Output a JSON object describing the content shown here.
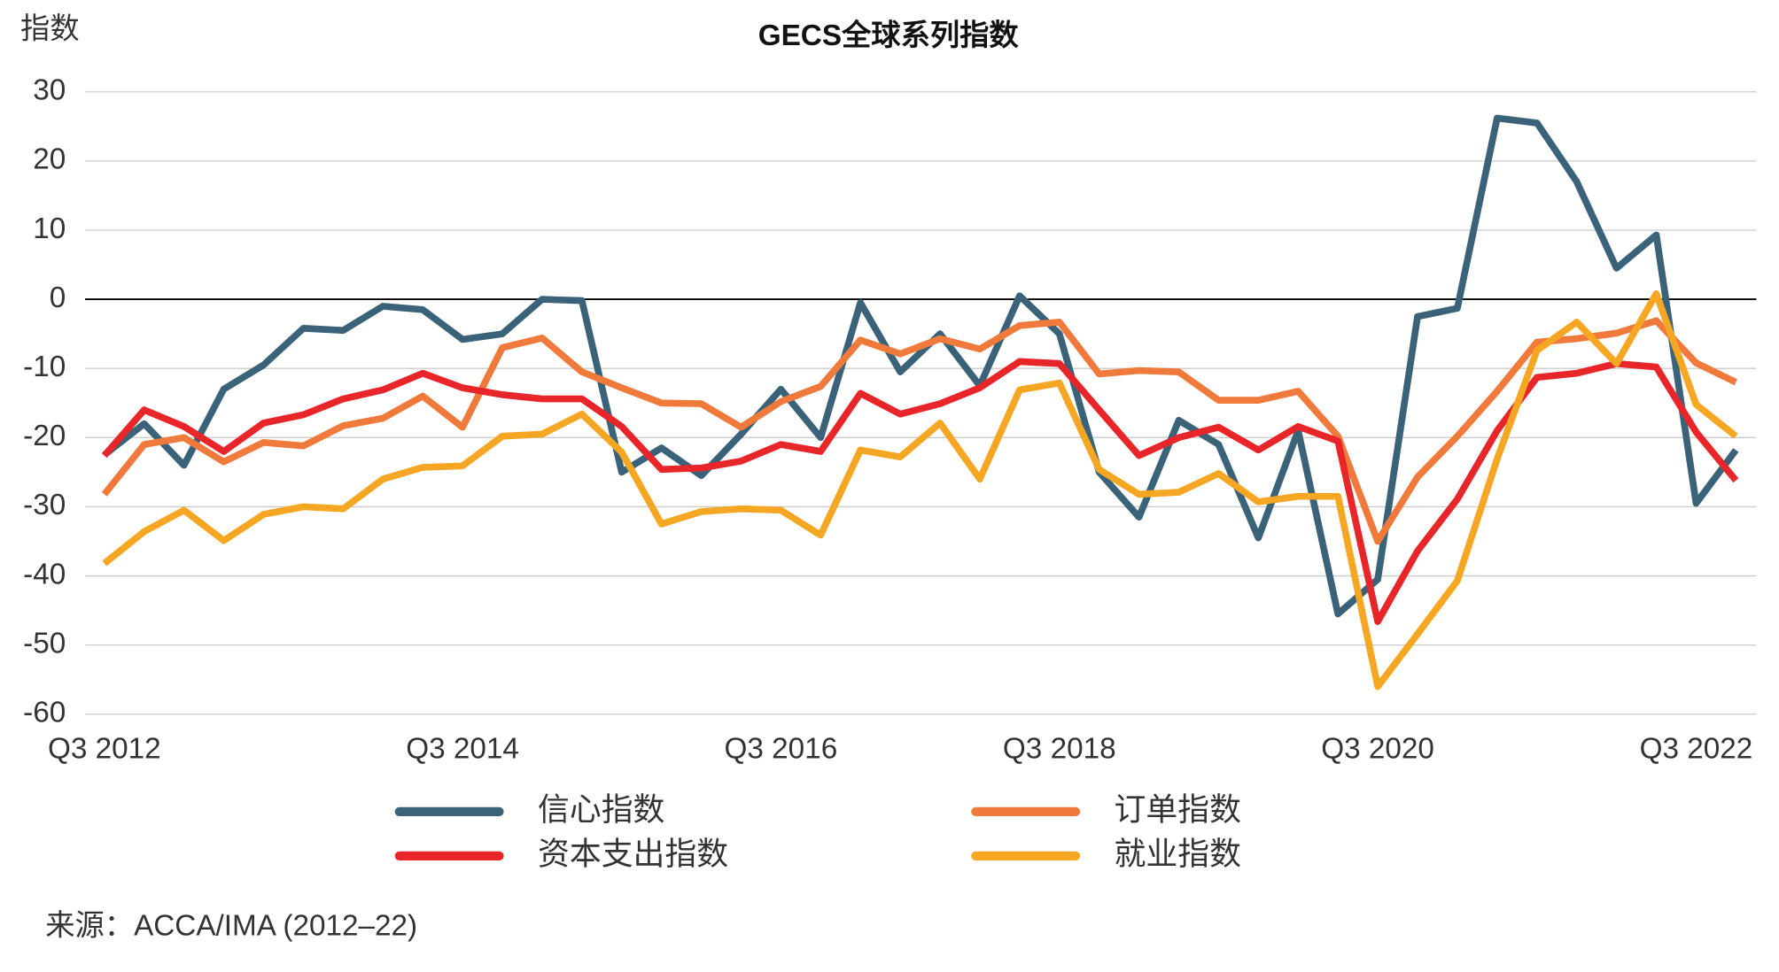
{
  "chart_data": {
    "type": "line",
    "title": "GECS全球系列指数",
    "y_label": "指数",
    "source": "来源：ACCA/IMA (2012–22)",
    "categories": [
      "Q3 2012",
      null,
      null,
      null,
      null,
      null,
      null,
      null,
      null,
      "Q3 2014",
      null,
      null,
      null,
      null,
      null,
      null,
      null,
      "Q3 2016",
      null,
      null,
      null,
      null,
      null,
      null,
      "Q3 2018",
      null,
      null,
      null,
      null,
      null,
      null,
      null,
      "Q3 2020",
      null,
      null,
      null,
      null,
      null,
      null,
      null,
      "Q3 2022",
      null
    ],
    "ylim": [
      -60,
      30
    ],
    "yticks": [
      30,
      20,
      10,
      0,
      -10,
      -20,
      -30,
      -40,
      -50,
      -60
    ],
    "grid": true,
    "series": [
      {
        "name": "信心指数",
        "color": "#3a6379",
        "values": [
          -22.5,
          -18,
          -24,
          -13,
          -9.5,
          -4.2,
          -4.5,
          -1,
          -1.5,
          -5.8,
          -5,
          0,
          -0.2,
          -25,
          -21.5,
          -25.5,
          -19.5,
          -13,
          -20,
          -0.5,
          -10.5,
          -5,
          -12.5,
          0.5,
          -5,
          -25,
          -31.5,
          -17.5,
          -21,
          -34.5,
          -19,
          -45.5,
          -40.5,
          -2.5,
          -1.3,
          26.2,
          25.5,
          17,
          4.5,
          9.3,
          -29.5,
          -21.8
        ]
      },
      {
        "name": "订单指数",
        "color": "#ef7a3b",
        "values": [
          -28.2,
          -21,
          -20,
          -23.5,
          -20.7,
          -21.2,
          -18.3,
          -17.2,
          -14,
          -18.5,
          -7,
          -5.6,
          -10.5,
          -12.8,
          -15,
          -15.1,
          -18.5,
          -14.8,
          -12.6,
          -5.9,
          -7.9,
          -5.7,
          -7.2,
          -3.8,
          -3.3,
          -10.8,
          -10.3,
          -10.5,
          -14.6,
          -14.6,
          -13.3,
          -19.8,
          -35,
          -25.7,
          -19.8,
          -13.3,
          -6.2,
          -5.7,
          -4.9,
          -3.1,
          -9.2,
          -12
        ]
      },
      {
        "name": "资本支出指数",
        "color": "#e8262a",
        "values": [
          -22.6,
          -16,
          -18.4,
          -22,
          -17.9,
          -16.7,
          -14.4,
          -13.1,
          -10.7,
          -12.8,
          -13.8,
          -14.4,
          -14.4,
          -18.4,
          -24.6,
          -24.4,
          -23.4,
          -21,
          -22,
          -13.6,
          -16.6,
          -15.1,
          -12.8,
          -9,
          -9.3,
          -16,
          -22.6,
          -20,
          -18.5,
          -21.8,
          -18.4,
          -20.5,
          -46.6,
          -36.4,
          -28.9,
          -19,
          -11.3,
          -10.7,
          -9.3,
          -9.8,
          -19.2,
          -26.2
        ]
      },
      {
        "name": "就业指数",
        "color": "#f5a623",
        "values": [
          -38.2,
          -33.6,
          -30.5,
          -34.9,
          -31.1,
          -30,
          -30.3,
          -26,
          -24.3,
          -24.1,
          -19.8,
          -19.5,
          -16.6,
          -22.1,
          -32.5,
          -30.7,
          -30.3,
          -30.5,
          -34.1,
          -21.8,
          -22.8,
          -17.9,
          -26,
          -13.1,
          -12.1,
          -24.6,
          -28.2,
          -27.9,
          -25.2,
          -29.3,
          -28.5,
          -28.5,
          -56,
          -48.4,
          -40.7,
          -23.1,
          -7.4,
          -3.3,
          -9.3,
          0.8,
          -15.2,
          -19.8
        ]
      }
    ]
  }
}
